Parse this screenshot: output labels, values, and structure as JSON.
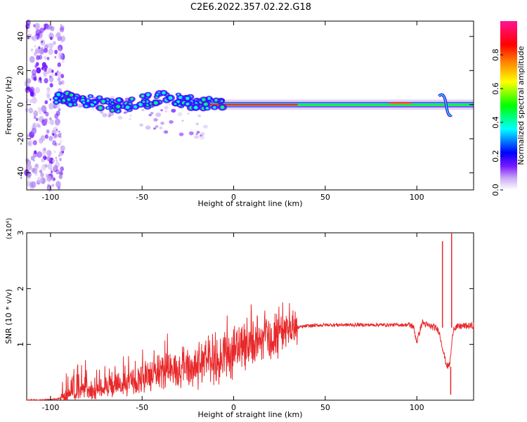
{
  "title": "C2E6.2022.357.02.22.G18",
  "chart_data": [
    {
      "type": "heatmap",
      "xlabel": "Height of straight line (km)",
      "ylabel": "Frequency (Hz)",
      "xlim": [
        -113,
        131
      ],
      "ylim": [
        -50,
        49
      ],
      "x_ticks": [
        "-100",
        "-50",
        "0",
        "50",
        "100"
      ],
      "y_ticks": [
        "-40",
        "-20",
        "0",
        "20",
        "40"
      ],
      "colorbar": {
        "label": "Normalized spectral amplitude",
        "ticks": [
          "0.0",
          "0.2",
          "0.4",
          "0.6",
          "0.8"
        ],
        "range": [
          0,
          1
        ],
        "colors": [
          "#ffffff",
          "#b890f0",
          "#6a00ff",
          "#0000ff",
          "#00ffff",
          "#00ff00",
          "#ffff00",
          "#ff8000",
          "#ff0000",
          "#ff00b0"
        ]
      },
      "features": [
        {
          "description": "scattered spectral energy",
          "x_range": [
            -113,
            -95
          ],
          "freq_range": [
            -50,
            49
          ]
        },
        {
          "description": "descending main line",
          "x": [
            -97,
            -80,
            -60,
            -40,
            -20,
            -5
          ],
          "freq": [
            4,
            2,
            -1,
            4,
            1,
            0
          ]
        },
        {
          "description": "steady carrier line",
          "x_range": [
            -20,
            131
          ],
          "freq": 0
        }
      ]
    },
    {
      "type": "line",
      "xlabel": "Height of straight line (km)",
      "ylabel": "SNR (10 * v/v)",
      "y_multiplier": "(x10⁴)",
      "xlim": [
        -113,
        131
      ],
      "ylim": [
        0,
        3
      ],
      "x_ticks": [
        "-100",
        "-50",
        "0",
        "50",
        "100"
      ],
      "y_ticks": [
        "1",
        "2",
        "3"
      ],
      "color": "#e8282a",
      "series": [
        {
          "x": [
            -113,
            -100,
            -95,
            -90,
            -80,
            -70,
            -60,
            -50,
            -40,
            -30,
            -20,
            -10,
            0,
            10,
            20,
            30,
            35,
            40,
            50,
            60,
            70,
            80,
            90,
            95,
            98,
            100,
            103,
            105,
            110,
            112,
            114,
            116,
            117,
            118,
            120,
            125,
            131
          ],
          "y": [
            0.0,
            0.01,
            0.03,
            0.08,
            0.15,
            0.22,
            0.3,
            0.4,
            0.48,
            0.55,
            0.6,
            0.7,
            0.85,
            1.0,
            1.12,
            1.25,
            1.3,
            1.33,
            1.35,
            1.35,
            1.35,
            1.35,
            1.35,
            1.35,
            1.33,
            1.05,
            1.4,
            1.35,
            1.3,
            1.25,
            0.95,
            0.65,
            0.6,
            0.65,
            1.3,
            1.33,
            1.33
          ]
        }
      ],
      "spikes": [
        {
          "x": 114,
          "y": 2.85
        },
        {
          "x": 119,
          "y": 3.0
        }
      ]
    }
  ]
}
